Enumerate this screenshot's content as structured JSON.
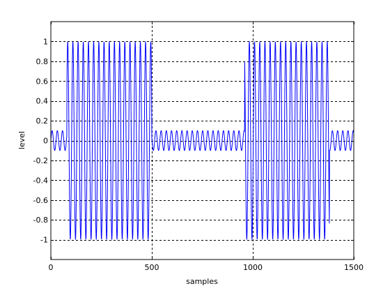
{
  "chart_data": {
    "type": "line",
    "title": "",
    "xlabel": "samples",
    "ylabel": "level",
    "xlim": [
      0,
      1500
    ],
    "ylim": [
      -1.2,
      1.2
    ],
    "xticks": [
      0,
      500,
      1000,
      1500
    ],
    "yticks": [
      -1,
      -0.8,
      -0.6,
      -0.4,
      -0.2,
      0,
      0.2,
      0.4,
      0.6,
      0.8,
      1
    ],
    "xtick_labels": [
      "0",
      "500",
      "1000",
      "1500"
    ],
    "ytick_labels": [
      "-1",
      "-0.8",
      "-0.6",
      "-0.4",
      "-0.2",
      "0",
      "0.2",
      "0.4",
      "0.6",
      "0.8",
      "1"
    ],
    "grid": {
      "x": true,
      "y": true,
      "style": "dashed"
    },
    "series": [
      {
        "color": "#0000ff",
        "sample_count": 1500,
        "period_samples": 25.7,
        "segments": [
          {
            "start": 0,
            "end": 80,
            "amplitude": 0.1
          },
          {
            "start": 80,
            "end": 500,
            "amplitude": 1.0
          },
          {
            "start": 500,
            "end": 960,
            "amplitude": 0.1
          },
          {
            "start": 960,
            "end": 1380,
            "amplitude": 1.0
          },
          {
            "start": 1380,
            "end": 1500,
            "amplitude": 0.1
          }
        ]
      }
    ]
  }
}
